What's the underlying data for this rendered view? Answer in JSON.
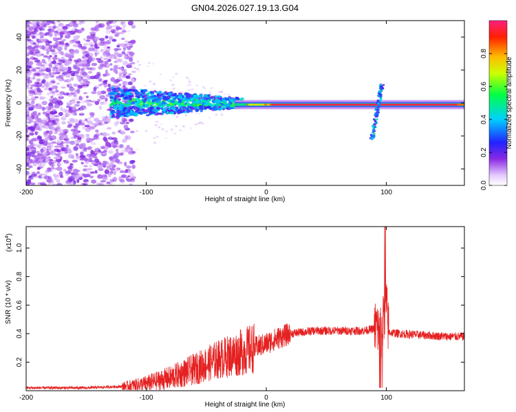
{
  "title": "GN04.2026.027.19.13.G04",
  "chart_data": [
    {
      "type": "heatmap",
      "name": "spectrogram",
      "xlabel": "Height of straight line (km)",
      "ylabel": "Frequency (Hz)",
      "xlim": [
        -200,
        165
      ],
      "ylim": [
        -50,
        50
      ],
      "xticks": [
        -200,
        -100,
        0,
        100
      ],
      "yticks": [
        -40,
        -20,
        0,
        20,
        40
      ],
      "colorbar": {
        "label": "Normalized spectral amplitude",
        "range": [
          0,
          1
        ],
        "ticks": [
          "0.0",
          "0.2",
          "0.4",
          "0.6",
          "0.8"
        ]
      },
      "features": [
        {
          "label": "scattered noise",
          "x_range": [
            -200,
            -110
          ],
          "freq_range": [
            -50,
            50
          ],
          "amplitude": 0.1
        },
        {
          "label": "broadening signal",
          "x_range": [
            -130,
            -20
          ],
          "freq_range": [
            -8,
            8
          ],
          "amplitude": 0.35
        },
        {
          "label": "main tone",
          "x_range": [
            -20,
            165
          ],
          "freq_center": -1,
          "amplitude": 0.95
        },
        {
          "label": "disturbance",
          "x_center": 93,
          "freq_range": [
            -22,
            12
          ],
          "amplitude": 0.5
        }
      ]
    },
    {
      "type": "line",
      "name": "snr",
      "xlabel": "Height of straight line (km)",
      "ylabel": "SNR (10 * v/v)",
      "y_multiplier": "(x10",
      "y_multiplier_exp": "4",
      "xlim": [
        -200,
        165
      ],
      "ylim": [
        0,
        1.15
      ],
      "xticks": [
        -200,
        -100,
        0,
        100
      ],
      "yticks": [
        "0.2",
        "0.4",
        "0.6",
        "0.8",
        "1.0"
      ],
      "color": "#e52020",
      "series": [
        {
          "name": "SNR",
          "x": [
            -200,
            -150,
            -120,
            -100,
            -80,
            -60,
            -40,
            -20,
            -10,
            0,
            10,
            20,
            30,
            40,
            60,
            80,
            88,
            92,
            95,
            98,
            100,
            102,
            110,
            130,
            150,
            165
          ],
          "y": [
            0.02,
            0.02,
            0.03,
            0.05,
            0.09,
            0.15,
            0.22,
            0.27,
            0.3,
            0.33,
            0.37,
            0.4,
            0.41,
            0.42,
            0.42,
            0.42,
            0.43,
            0.45,
            0.38,
            0.5,
            0.6,
            0.41,
            0.4,
            0.39,
            0.38,
            0.38
          ]
        }
      ]
    }
  ]
}
